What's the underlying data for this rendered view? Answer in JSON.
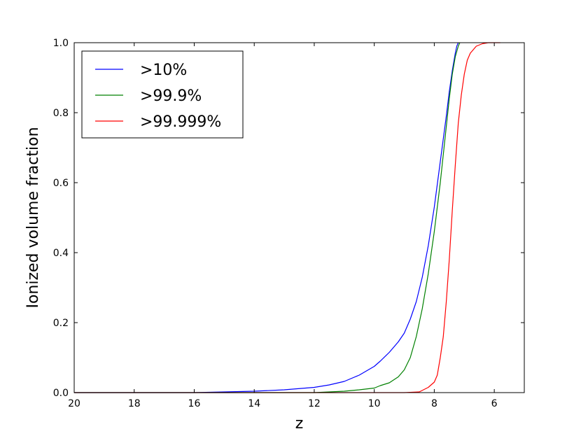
{
  "chart_data": {
    "type": "line",
    "xlabel": "z",
    "ylabel": "Ionized volume fraction",
    "xlim": [
      20,
      5
    ],
    "ylim": [
      0.0,
      1.0
    ],
    "x_ticks": [
      20,
      18,
      16,
      14,
      12,
      10,
      8,
      6
    ],
    "y_ticks": [
      0.0,
      0.2,
      0.4,
      0.6,
      0.8,
      1.0
    ],
    "x_tick_labels": [
      "20",
      "18",
      "16",
      "14",
      "12",
      "10",
      "8",
      "6"
    ],
    "y_tick_labels": [
      "0.0",
      "0.2",
      "0.4",
      "0.6",
      "0.8",
      "1.0"
    ],
    "grid": false,
    "legend_position": "top-left",
    "series": [
      {
        "name": ">10%",
        "color": "#0000ff",
        "x": [
          20,
          18,
          16,
          15,
          14,
          13,
          12,
          11.5,
          11,
          10.5,
          10,
          9.8,
          9.5,
          9.2,
          9.0,
          8.8,
          8.6,
          8.4,
          8.2,
          8.0,
          7.8,
          7.6,
          7.5,
          7.4,
          7.3,
          7.25,
          7.2
        ],
        "y": [
          0.0,
          0.0,
          0.0,
          0.002,
          0.004,
          0.008,
          0.015,
          0.022,
          0.032,
          0.05,
          0.075,
          0.09,
          0.115,
          0.145,
          0.17,
          0.21,
          0.26,
          0.33,
          0.42,
          0.53,
          0.66,
          0.79,
          0.86,
          0.92,
          0.97,
          0.99,
          1.0
        ]
      },
      {
        "name": ">99.9%",
        "color": "#008000",
        "x": [
          20,
          14,
          12,
          11,
          10.5,
          10,
          9.8,
          9.5,
          9.2,
          9.0,
          8.8,
          8.6,
          8.4,
          8.2,
          8.0,
          7.8,
          7.6,
          7.5,
          7.4,
          7.3,
          7.2,
          7.15
        ],
        "y": [
          0.0,
          0.0,
          0.0,
          0.004,
          0.008,
          0.013,
          0.02,
          0.028,
          0.045,
          0.065,
          0.1,
          0.16,
          0.24,
          0.34,
          0.46,
          0.6,
          0.76,
          0.84,
          0.91,
          0.96,
          0.99,
          1.0
        ]
      },
      {
        "name": ">99.999%",
        "color": "#ff0000",
        "x": [
          20,
          10,
          9,
          8.5,
          8.2,
          8.0,
          7.9,
          7.8,
          7.7,
          7.6,
          7.5,
          7.4,
          7.3,
          7.2,
          7.1,
          7.0,
          6.9,
          6.8,
          6.6,
          6.4,
          6.2,
          6.0,
          5.8
        ],
        "y": [
          0.0,
          0.0,
          0.0,
          0.002,
          0.015,
          0.03,
          0.05,
          0.1,
          0.16,
          0.26,
          0.38,
          0.52,
          0.65,
          0.77,
          0.85,
          0.91,
          0.95,
          0.97,
          0.99,
          0.997,
          1.0,
          1.0,
          1.0
        ]
      }
    ]
  }
}
